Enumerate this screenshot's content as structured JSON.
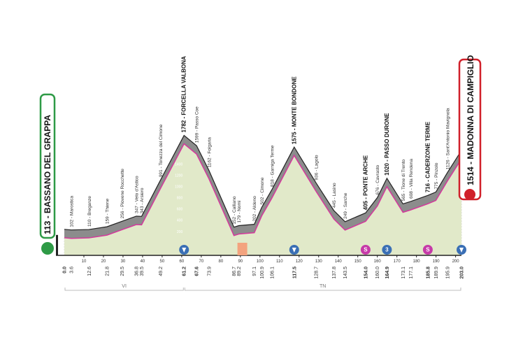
{
  "chart_data": {
    "type": "elevation-profile",
    "x": [
      0.0,
      3.6,
      12.6,
      21.8,
      29.5,
      36.8,
      39.5,
      49.2,
      61.2,
      67.6,
      73.9,
      86.7,
      89.2,
      97.1,
      100.9,
      106.1,
      117.5,
      128.7,
      137.8,
      143.5,
      154.0,
      160.0,
      164.9,
      173.1,
      177.1,
      185.8,
      189.9,
      195.9,
      203.0
    ],
    "x_labels": [
      "0.0",
      "3.6",
      "12.6",
      "21.8",
      "29.5",
      "36.8",
      "39.5",
      "49.2",
      "61.2",
      "67.6",
      "73.9",
      "86.7",
      "89.2",
      "97.1",
      "100.9",
      "106.1",
      "117.5",
      "128.7",
      "137.8",
      "143.5",
      "154.0",
      "160.0",
      "164.9",
      "173.1",
      "177.1",
      "185.8",
      "189.9",
      "195.9",
      "203.0"
    ],
    "values": [
      113,
      102,
      110,
      159,
      256,
      347,
      343,
      991,
      1782,
      1599,
      1162,
      152,
      179,
      202,
      502,
      818,
      1575,
      936,
      445,
      249,
      405,
      676,
      1020,
      565,
      608,
      716,
      775,
      1126,
      1514
    ],
    "point_labels": [
      "113 - BASSANO DEL GRAPPA",
      "102 - Marostica",
      "110 - Breganze",
      "159 - Thiene",
      "256 - Piovene Rocchette",
      "347 - Velo d'Astico",
      "343 - Arsiero",
      "991 - Tonezza del Cimone",
      "1782 - FORCELLA VALBONA",
      "1599 - Passo Coe",
      "1162 - Folgaria",
      "152 - Calliano",
      "179 - Nomi",
      "202 - Aldeno",
      "502 - Cimone",
      "818 - Garniga Terme",
      "1575 - MONTE BONDONE",
      "936 - Lagolo",
      "445 - Lasino",
      "249 - Sarche",
      "405 - PONTE ARCHE",
      "676 - Cavrasto",
      "1020 - PASSO DURONE",
      "565 - Tione di Trento",
      "608 - Villa Rendena",
      "716 - CADERZONE TERME",
      "775 - Pinzolo",
      "1126 - Sant'Antonio Mavignola",
      "1514 - MADONNA DI CAMPIGLIO"
    ],
    "xlim": [
      0,
      203
    ],
    "xticks": [
      10,
      20,
      30,
      40,
      50,
      60,
      70,
      80,
      90,
      100,
      110,
      120,
      130,
      140,
      150,
      160,
      170,
      180,
      190,
      200
    ],
    "ylim": [
      -200,
      2000
    ],
    "yticks": [
      200,
      400,
      600,
      800,
      1000,
      1200,
      1400
    ],
    "markers": [
      {
        "x": 154.0,
        "label": "S"
      },
      {
        "x": 164.9,
        "label": "3"
      },
      {
        "x": 185.8,
        "label": "S"
      }
    ],
    "provinces": [
      {
        "label": "VI",
        "from": 0,
        "to": 61.2
      },
      {
        "label": "TN",
        "from": 61.2,
        "to": 203.0
      }
    ],
    "fill_color": "#e1e9c9",
    "line_color": "#d4389c",
    "band_color": "#8c8c8c"
  }
}
